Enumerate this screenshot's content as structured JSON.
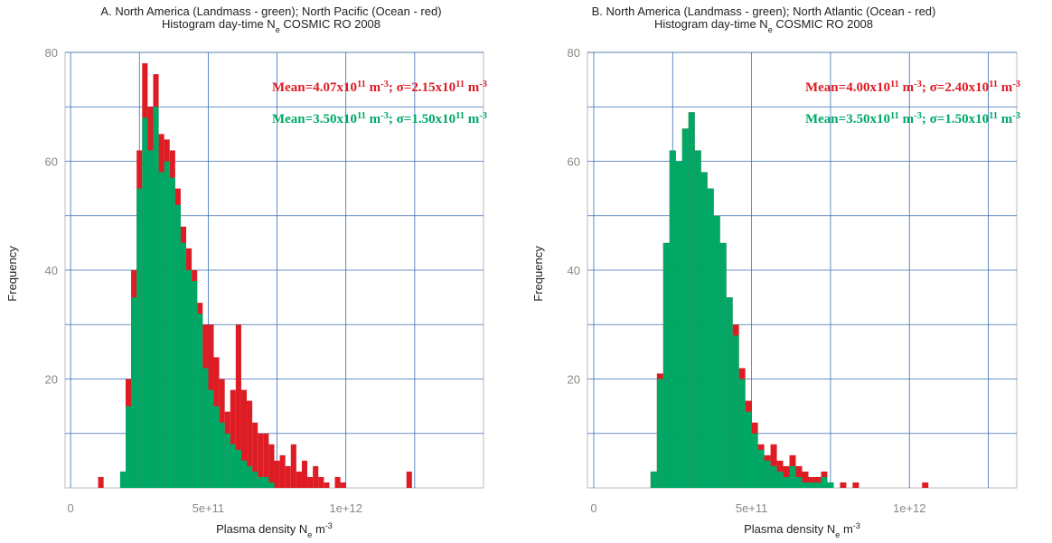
{
  "chart_data": [
    {
      "type": "histogram",
      "title": "A. North America (Landmass - green); North Pacific (Ocean - red)",
      "subtitle": [
        "Histogram day-time N",
        "e",
        " COSMIC RO 2008"
      ],
      "xlabel": [
        "Plasma density N",
        "e",
        " m",
        "-3"
      ],
      "ylabel": "Frequency",
      "xlim": [
        -20000000000.0,
        1500000000000.0
      ],
      "ylim": [
        0,
        80
      ],
      "xticks": [
        0,
        {
          "value": 500000000000.0,
          "label": "5e+11"
        },
        {
          "value": 1000000000000.0,
          "label": "1e+12"
        }
      ],
      "xgrid": [
        250000000000.0,
        750000000000.0,
        1250000000000.0
      ],
      "yticks": [
        20,
        40,
        60,
        80
      ],
      "ygrid": [
        10,
        30,
        50,
        70
      ],
      "grid_color": "#3a6fb5",
      "bins": [
        100000000000.0,
        120000000000.0,
        140000000000.0,
        160000000000.0,
        180000000000.0,
        200000000000.0,
        220000000000.0,
        240000000000.0,
        260000000000.0,
        280000000000.0,
        300000000000.0,
        320000000000.0,
        340000000000.0,
        360000000000.0,
        380000000000.0,
        400000000000.0,
        420000000000.0,
        440000000000.0,
        460000000000.0,
        480000000000.0,
        500000000000.0,
        520000000000.0,
        540000000000.0,
        560000000000.0,
        580000000000.0,
        600000000000.0,
        620000000000.0,
        640000000000.0,
        660000000000.0,
        680000000000.0,
        700000000000.0,
        720000000000.0,
        740000000000.0,
        760000000000.0,
        780000000000.0,
        800000000000.0,
        820000000000.0,
        840000000000.0,
        860000000000.0,
        880000000000.0,
        900000000000.0,
        920000000000.0,
        940000000000.0,
        960000000000.0,
        980000000000.0,
        1000000000000.0,
        1020000000000.0,
        1040000000000.0,
        1060000000000.0,
        1080000000000.0,
        1100000000000.0,
        1120000000000.0,
        1140000000000.0,
        1160000000000.0,
        1180000000000.0,
        1200000000000.0,
        1220000000000.0,
        1240000000000.0,
        1260000000000.0
      ],
      "series": [
        {
          "color": "#dd1c24",
          "values": [
            2,
            0,
            0,
            0,
            3,
            20,
            40,
            62,
            78,
            70,
            76,
            65,
            64,
            62,
            55,
            48,
            44,
            40,
            34,
            30,
            30,
            24,
            20,
            14,
            18,
            30,
            18,
            16,
            12,
            10,
            10,
            8,
            5,
            6,
            4,
            8,
            3,
            5,
            2,
            4,
            2,
            1,
            0,
            2,
            1,
            0,
            0,
            0,
            0,
            0,
            0,
            0,
            0,
            0,
            0,
            0,
            3,
            0
          ]
        },
        {
          "color": "#00a866",
          "values": [
            0,
            0,
            0,
            0,
            3,
            15,
            35,
            55,
            68,
            62,
            70,
            58,
            60,
            57,
            52,
            45,
            40,
            38,
            32,
            22,
            18,
            15,
            12,
            10,
            8,
            7,
            5,
            4,
            3,
            2,
            2,
            1,
            0,
            0,
            0,
            0,
            0,
            0,
            0,
            0,
            0,
            0,
            0,
            0,
            0,
            0,
            0,
            0,
            0,
            0,
            0,
            0,
            0,
            0,
            0,
            0,
            0,
            0
          ]
        }
      ],
      "annotations": [
        {
          "color": "#dd1c24",
          "parts": [
            "Mean=4.07x10",
            "11",
            " m",
            "-3",
            "; σ=2.15x10",
            "11",
            " m",
            "-3"
          ]
        },
        {
          "color": "#00a866",
          "parts": [
            "Mean=3.50x10",
            "11",
            " m",
            "-3",
            "; σ=1.50x10",
            "11",
            " m",
            "-3"
          ]
        }
      ]
    },
    {
      "type": "histogram",
      "title": "B. North America (Landmass - green); North Atlantic (Ocean - red)",
      "subtitle": [
        "Histogram day-time N",
        "e",
        " COSMIC RO 2008"
      ],
      "xlabel": [
        "Plasma density N",
        "e",
        " m",
        "-3"
      ],
      "ylabel": "Frequency",
      "xlim": [
        -20000000000.0,
        1340000000000.0
      ],
      "ylim": [
        0,
        80
      ],
      "xticks": [
        0,
        {
          "value": 500000000000.0,
          "label": "5e+11"
        },
        {
          "value": 1000000000000.0,
          "label": "1e+12"
        }
      ],
      "xgrid": [
        250000000000.0,
        750000000000.0,
        1250000000000.0
      ],
      "yticks": [
        20,
        40,
        60,
        80
      ],
      "ygrid": [
        10,
        30,
        50,
        70
      ],
      "grid_color": "#3a6fb5",
      "bins": [
        100000000000.0,
        120000000000.0,
        140000000000.0,
        160000000000.0,
        180000000000.0,
        200000000000.0,
        220000000000.0,
        240000000000.0,
        260000000000.0,
        280000000000.0,
        300000000000.0,
        320000000000.0,
        340000000000.0,
        360000000000.0,
        380000000000.0,
        400000000000.0,
        420000000000.0,
        440000000000.0,
        460000000000.0,
        480000000000.0,
        500000000000.0,
        520000000000.0,
        540000000000.0,
        560000000000.0,
        580000000000.0,
        600000000000.0,
        620000000000.0,
        640000000000.0,
        660000000000.0,
        680000000000.0,
        700000000000.0,
        720000000000.0,
        740000000000.0,
        760000000000.0,
        780000000000.0,
        800000000000.0,
        820000000000.0,
        840000000000.0,
        860000000000.0,
        880000000000.0,
        900000000000.0,
        920000000000.0,
        940000000000.0,
        960000000000.0,
        980000000000.0,
        1000000000000.0,
        1020000000000.0,
        1040000000000.0,
        1060000000000.0,
        1080000000000.0,
        1100000000000.0,
        1120000000000.0,
        1140000000000.0,
        1160000000000.0,
        1180000000000.0,
        1200000000000.0,
        1220000000000.0,
        1240000000000.0,
        1260000000000.0
      ],
      "series": [
        {
          "color": "#dd1c24",
          "values": [
            0,
            0,
            0,
            0,
            3,
            21,
            45,
            62,
            60,
            66,
            69,
            62,
            58,
            55,
            50,
            45,
            35,
            30,
            22,
            16,
            12,
            8,
            6,
            8,
            5,
            4,
            6,
            4,
            3,
            2,
            2,
            3,
            1,
            0,
            1,
            0,
            1,
            0,
            0,
            0,
            0,
            0,
            0,
            0,
            0,
            0,
            0,
            1,
            0,
            0,
            0,
            0,
            0,
            0,
            0,
            0,
            0,
            0
          ]
        },
        {
          "color": "#00a866",
          "values": [
            0,
            0,
            0,
            0,
            3,
            20,
            45,
            62,
            60,
            66,
            69,
            62,
            58,
            55,
            50,
            45,
            35,
            28,
            20,
            14,
            10,
            7,
            5,
            4,
            3,
            2,
            4,
            2,
            1,
            1,
            1,
            2,
            1,
            0,
            0,
            0,
            0,
            0,
            0,
            0,
            0,
            0,
            0,
            0,
            0,
            0,
            0,
            0,
            0,
            0,
            0,
            0,
            0,
            0,
            0,
            0,
            0,
            0
          ]
        }
      ],
      "annotations": [
        {
          "color": "#dd1c24",
          "parts": [
            "Mean=4.00x10",
            "11",
            " m",
            "-3",
            "; σ=2.40x10",
            "11",
            " m",
            "-3"
          ]
        },
        {
          "color": "#00a866",
          "parts": [
            "Mean=3.50x10",
            "11",
            " m",
            "-3",
            "; σ=1.50x10",
            "11",
            " m",
            "-3"
          ]
        }
      ]
    }
  ]
}
